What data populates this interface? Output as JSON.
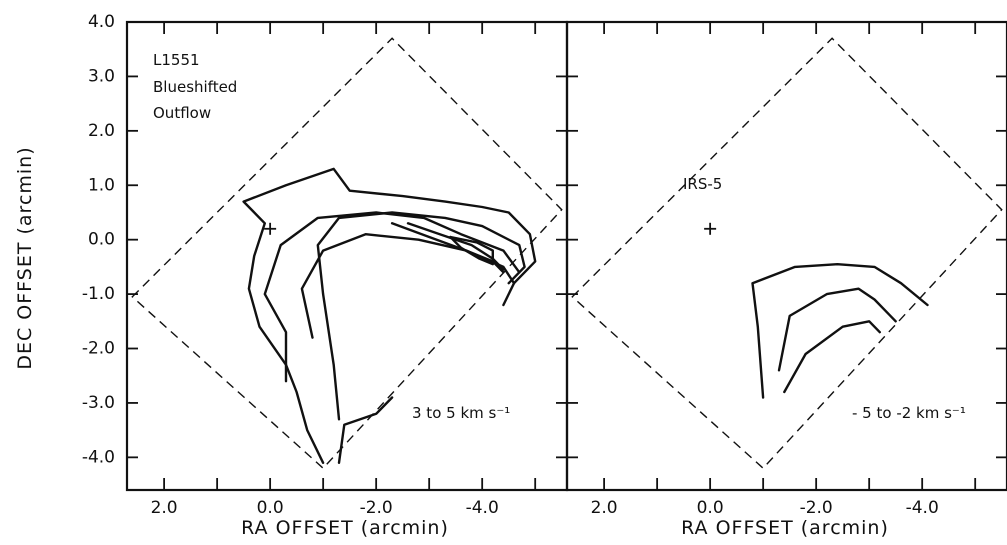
{
  "chart_data": [
    {
      "type": "contour",
      "panel": "left",
      "annotation_lines": [
        "L1551",
        "Blueshifted",
        "Outflow"
      ],
      "velocity_label": "3 to 5 km s⁻¹",
      "xlabel": "RA OFFSET  (arcmin)",
      "ylabel": "DEC OFFSET  (arcmin)",
      "x_tick_labels": [
        "2.0",
        "0.0",
        "-2.0",
        "-4.0"
      ],
      "x_tick_values": [
        2.0,
        0.0,
        -2.0,
        -4.0
      ],
      "y_tick_labels": [
        "4.0",
        "3.0",
        "2.0",
        "1.0",
        "0.0",
        "-1.0",
        "-2.0",
        "-3.0",
        "-4.0"
      ],
      "y_tick_values": [
        4.0,
        3.0,
        2.0,
        1.0,
        0.0,
        -1.0,
        -2.0,
        -3.0,
        -4.0
      ],
      "xlim": [
        2.7,
        -5.6
      ],
      "ylim": [
        -4.6,
        4.0
      ],
      "source_position": [
        0.0,
        0.2
      ],
      "mapped_region": [
        [
          2.6,
          -1.05
        ],
        [
          -2.3,
          3.7
        ],
        [
          -5.5,
          0.55
        ],
        [
          -1.0,
          -4.2
        ]
      ],
      "contours": [
        [
          [
            -1.0,
            -4.1
          ],
          [
            -0.7,
            -3.5
          ],
          [
            -0.5,
            -2.8
          ],
          [
            -0.3,
            -2.3
          ],
          [
            0.2,
            -1.6
          ],
          [
            0.4,
            -0.9
          ],
          [
            0.3,
            -0.3
          ],
          [
            0.1,
            0.3
          ],
          [
            0.5,
            0.7
          ],
          [
            -0.3,
            1.0
          ],
          [
            -1.2,
            1.3
          ],
          [
            -1.5,
            0.9
          ],
          [
            -2.5,
            0.8
          ],
          [
            -3.3,
            0.7
          ],
          [
            -4.0,
            0.6
          ],
          [
            -4.5,
            0.5
          ],
          [
            -4.9,
            0.1
          ],
          [
            -5.0,
            -0.4
          ],
          [
            -4.6,
            -0.8
          ],
          [
            -4.4,
            -1.2
          ]
        ],
        [
          [
            -1.3,
            -4.1
          ],
          [
            -1.4,
            -3.4
          ],
          [
            -2.0,
            -3.2
          ],
          [
            -2.3,
            -2.9
          ]
        ],
        [
          [
            -1.3,
            -3.3
          ],
          [
            -1.2,
            -2.3
          ],
          [
            -1.0,
            -1.0
          ],
          [
            -0.9,
            -0.1
          ],
          [
            -1.3,
            0.4
          ],
          [
            -2.3,
            0.5
          ],
          [
            -3.3,
            0.4
          ],
          [
            -4.0,
            0.25
          ],
          [
            -4.7,
            -0.1
          ],
          [
            -4.8,
            -0.5
          ],
          [
            -4.5,
            -0.8
          ]
        ],
        [
          [
            -0.3,
            -2.6
          ],
          [
            -0.3,
            -1.7
          ],
          [
            0.1,
            -1.0
          ],
          [
            -0.2,
            -0.1
          ],
          [
            -0.9,
            0.4
          ],
          [
            -2.0,
            0.5
          ],
          [
            -2.9,
            0.4
          ],
          [
            -3.6,
            0.1
          ],
          [
            -4.4,
            -0.2
          ],
          [
            -4.7,
            -0.6
          ]
        ],
        [
          [
            -0.8,
            -1.8
          ],
          [
            -0.6,
            -0.9
          ],
          [
            -1.0,
            -0.2
          ],
          [
            -1.8,
            0.1
          ],
          [
            -2.8,
            0.0
          ],
          [
            -3.7,
            -0.2
          ],
          [
            -4.4,
            -0.5
          ],
          [
            -4.6,
            -0.8
          ]
        ],
        [
          [
            -2.3,
            0.3
          ],
          [
            -3.0,
            0.05
          ],
          [
            -3.7,
            -0.2
          ],
          [
            -4.2,
            -0.4
          ],
          [
            -4.4,
            -0.6
          ]
        ],
        [
          [
            -2.6,
            0.3
          ],
          [
            -3.2,
            0.1
          ],
          [
            -3.8,
            -0.1
          ],
          [
            -4.2,
            -0.35
          ],
          [
            -4.4,
            -0.55
          ]
        ],
        [
          [
            -3.4,
            0.05
          ],
          [
            -3.9,
            -0.05
          ],
          [
            -4.2,
            -0.2
          ],
          [
            -4.2,
            -0.45
          ],
          [
            -3.95,
            -0.35
          ],
          [
            -3.6,
            -0.15
          ],
          [
            -3.4,
            0.05
          ]
        ]
      ]
    },
    {
      "type": "contour",
      "panel": "right",
      "source_label": "IRS-5",
      "velocity_label": "- 5 to -2 km s⁻¹",
      "xlabel": "RA OFFSET  (arcmin)",
      "x_tick_labels": [
        "2.0",
        "0.0",
        "-2.0",
        "-4.0"
      ],
      "x_tick_values": [
        2.0,
        0.0,
        -2.0,
        -4.0
      ],
      "xlim": [
        2.7,
        -5.6
      ],
      "ylim": [
        -4.6,
        4.0
      ],
      "source_position": [
        0.0,
        0.2
      ],
      "mapped_region": [
        [
          2.6,
          -1.05
        ],
        [
          -2.3,
          3.7
        ],
        [
          -5.5,
          0.55
        ],
        [
          -1.0,
          -4.2
        ]
      ],
      "contours": [
        [
          [
            -1.0,
            -2.9
          ],
          [
            -0.9,
            -1.6
          ],
          [
            -0.8,
            -0.8
          ],
          [
            -1.6,
            -0.5
          ],
          [
            -2.4,
            -0.45
          ],
          [
            -3.1,
            -0.5
          ],
          [
            -3.6,
            -0.8
          ],
          [
            -4.1,
            -1.2
          ]
        ],
        [
          [
            -1.3,
            -2.4
          ],
          [
            -1.5,
            -1.4
          ],
          [
            -2.2,
            -1.0
          ],
          [
            -2.8,
            -0.9
          ],
          [
            -3.1,
            -1.1
          ],
          [
            -3.5,
            -1.5
          ]
        ],
        [
          [
            -1.4,
            -2.8
          ],
          [
            -1.8,
            -2.1
          ],
          [
            -2.5,
            -1.6
          ],
          [
            -3.0,
            -1.5
          ],
          [
            -3.2,
            -1.7
          ]
        ]
      ]
    }
  ]
}
